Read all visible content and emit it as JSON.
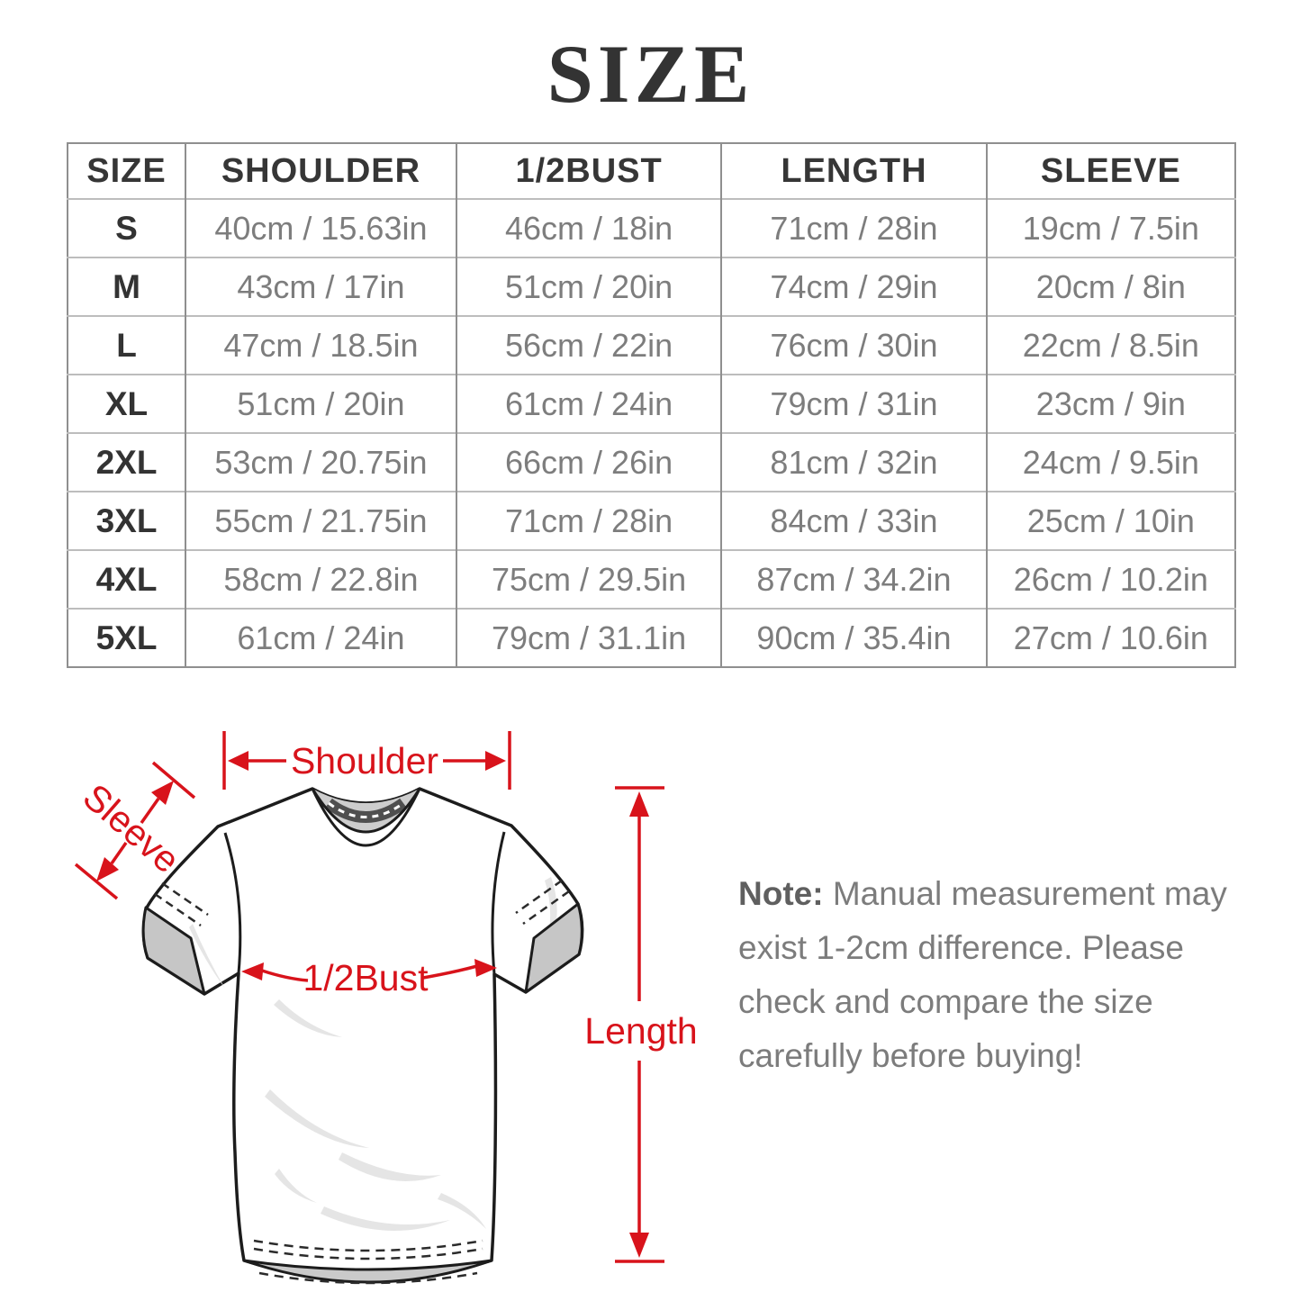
{
  "page": {
    "title": "SIZE"
  },
  "colors": {
    "accent": "#d8131b"
  },
  "table": {
    "columns": [
      "SIZE",
      "SHOULDER",
      "1/2BUST",
      "LENGTH",
      "SLEEVE"
    ],
    "rows": [
      [
        "S",
        "40cm / 15.63in",
        "46cm / 18in",
        "71cm / 28in",
        "19cm / 7.5in"
      ],
      [
        "M",
        "43cm / 17in",
        "51cm / 20in",
        "74cm / 29in",
        "20cm / 8in"
      ],
      [
        "L",
        "47cm / 18.5in",
        "56cm / 22in",
        "76cm / 30in",
        "22cm / 8.5in"
      ],
      [
        "XL",
        "51cm / 20in",
        "61cm / 24in",
        "79cm / 31in",
        "23cm / 9in"
      ],
      [
        "2XL",
        "53cm / 20.75in",
        "66cm / 26in",
        "81cm / 32in",
        "24cm / 9.5in"
      ],
      [
        "3XL",
        "55cm / 21.75in",
        "71cm / 28in",
        "84cm / 33in",
        "25cm / 10in"
      ],
      [
        "4XL",
        "58cm / 22.8in",
        "75cm / 29.5in",
        "87cm / 34.2in",
        "26cm / 10.2in"
      ],
      [
        "5XL",
        "61cm / 24in",
        "79cm / 31.1in",
        "90cm / 35.4in",
        "27cm / 10.6in"
      ]
    ]
  },
  "diagram": {
    "labels": {
      "shoulder": "Shoulder",
      "sleeve": "Sleeve",
      "bust": "1/2Bust",
      "length": "Length"
    }
  },
  "note": {
    "label": "Note:",
    "line1": "Manual measurement may",
    "line2": "exist 1-2cm difference. Please",
    "line3": "check and compare the size",
    "line4": "carefully before buying!"
  }
}
